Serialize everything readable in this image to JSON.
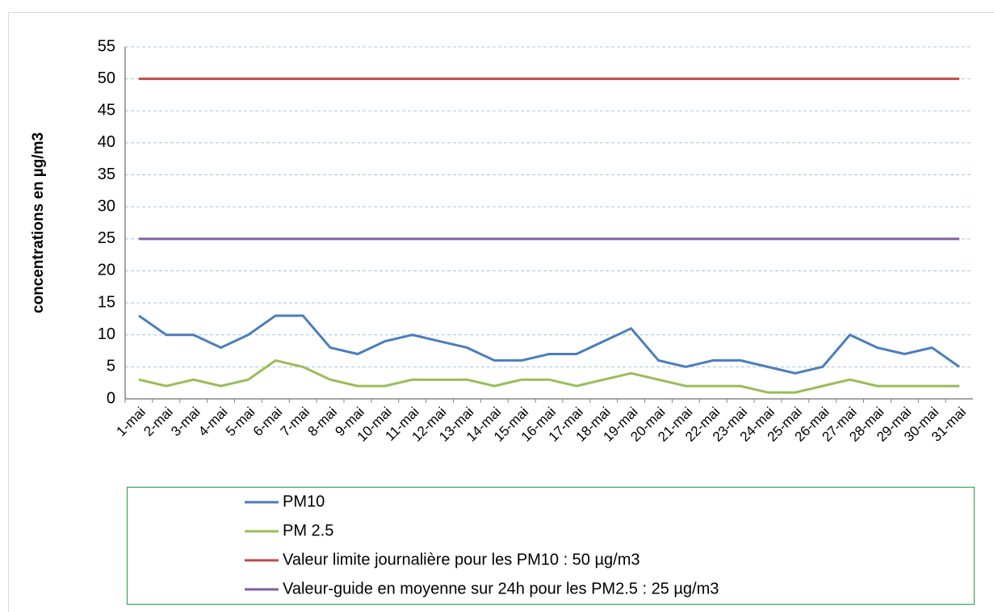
{
  "chart_data": {
    "type": "line",
    "ylabel": "concentrations  en  µg/m3",
    "categories": [
      "1-mai",
      "2-mai",
      "3-mai",
      "4-mai",
      "5-mai",
      "6-mai",
      "7-mai",
      "8-mai",
      "9-mai",
      "10-mai",
      "11-mai",
      "12-mai",
      "13-mai",
      "14-mai",
      "15-mai",
      "16-mai",
      "17-mai",
      "18-mai",
      "19-mai",
      "20-mai",
      "21-mai",
      "22-mai",
      "23-mai",
      "24-mai",
      "25-mai",
      "26-mai",
      "27-mai",
      "28-mai",
      "29-mai",
      "30-mai",
      "31-mai"
    ],
    "series": [
      {
        "name": "PM10",
        "color": "#4a7ebb",
        "values": [
          13,
          10,
          10,
          8,
          10,
          13,
          13,
          8,
          7,
          9,
          10,
          9,
          8,
          6,
          6,
          7,
          7,
          9,
          11,
          6,
          5,
          6,
          6,
          5,
          4,
          5,
          10,
          8,
          7,
          8,
          5
        ]
      },
      {
        "name": "PM 2.5",
        "color": "#9bbb59",
        "values": [
          3,
          2,
          3,
          2,
          3,
          6,
          5,
          3,
          2,
          2,
          3,
          3,
          3,
          2,
          3,
          3,
          2,
          3,
          4,
          3,
          2,
          2,
          2,
          1,
          1,
          2,
          3,
          2,
          2,
          2,
          2
        ]
      },
      {
        "name": "Valeur limite journalière pour les PM10 : 50 µg/m3",
        "color": "#be4b48",
        "values": [
          50,
          50,
          50,
          50,
          50,
          50,
          50,
          50,
          50,
          50,
          50,
          50,
          50,
          50,
          50,
          50,
          50,
          50,
          50,
          50,
          50,
          50,
          50,
          50,
          50,
          50,
          50,
          50,
          50,
          50,
          50
        ]
      },
      {
        "name": "Valeur-guide en moyenne sur 24h pour les PM2.5 : 25 µg/m3",
        "color": "#7d60a0",
        "values": [
          25,
          25,
          25,
          25,
          25,
          25,
          25,
          25,
          25,
          25,
          25,
          25,
          25,
          25,
          25,
          25,
          25,
          25,
          25,
          25,
          25,
          25,
          25,
          25,
          25,
          25,
          25,
          25,
          25,
          25,
          25
        ]
      }
    ],
    "ylim": [
      0,
      55
    ],
    "yticks": [
      0,
      5,
      10,
      15,
      20,
      25,
      30,
      35,
      40,
      45,
      50,
      55
    ],
    "grid": true
  }
}
